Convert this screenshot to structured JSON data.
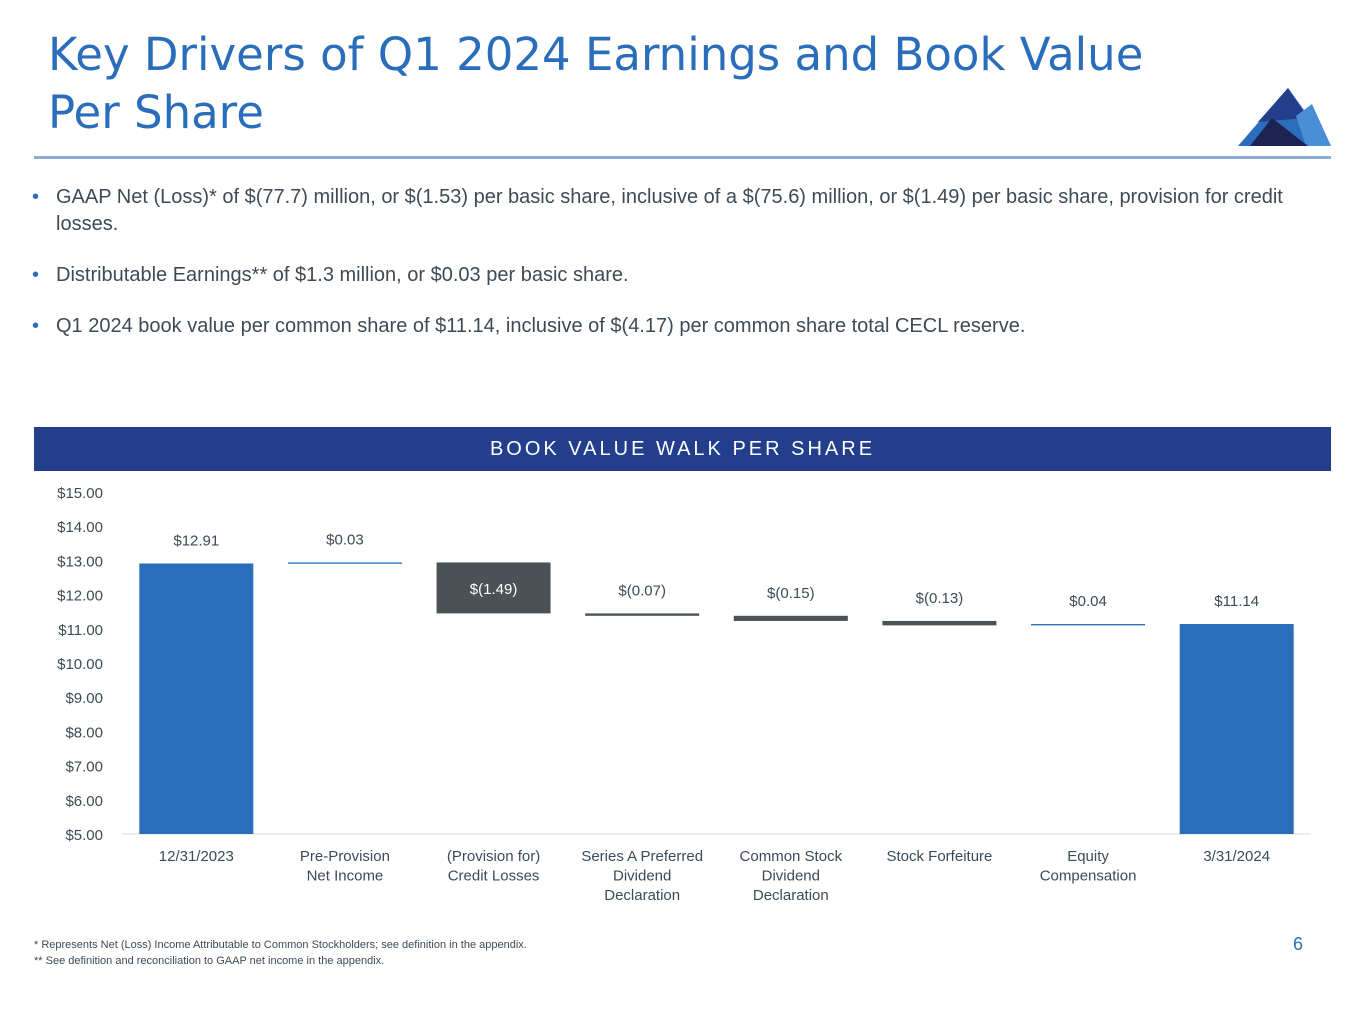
{
  "slide": {
    "title_line1": "Key Drivers of Q1 2024 Earnings and Book Value",
    "title_line2": "Per Share",
    "page_number": "6",
    "colors": {
      "accent": "#2a6ebb",
      "banner": "#233f8c",
      "bar_blue": "#2a6ebb",
      "bar_gray": "#4a5256"
    }
  },
  "bullets": [
    "GAAP Net (Loss)* of $(77.7) million, or $(1.53) per basic share, inclusive of a $(75.6) million, or $(1.49) per basic share, provision for credit losses.",
    "Distributable Earnings** of $1.3 million, or $0.03 per basic share.",
    "Q1 2024 book value per common share of $11.14, inclusive of $(4.17) per common share total CECL reserve."
  ],
  "banner": {
    "label": "BOOK VALUE WALK PER SHARE"
  },
  "footnotes": {
    "line1": "* Represents Net (Loss) Income Attributable to Common Stockholders; see definition in the appendix.",
    "line2": "** See definition and reconciliation to GAAP net income in the appendix."
  },
  "chart_data": {
    "type": "waterfall",
    "title": "BOOK VALUE WALK PER SHARE",
    "ylim": [
      5,
      15
    ],
    "ytick_step": 1,
    "ytick_labels": [
      "$5.00",
      "$6.00",
      "$7.00",
      "$8.00",
      "$9.00",
      "$10.00",
      "$11.00",
      "$12.00",
      "$13.00",
      "$14.00",
      "$15.00"
    ],
    "categories": [
      [
        "12/31/2023"
      ],
      [
        "Pre-Provision",
        "Net Income"
      ],
      [
        "(Provision for)",
        "Credit Losses"
      ],
      [
        "Series A Preferred",
        "Dividend",
        "Declaration"
      ],
      [
        "Common Stock",
        "Dividend",
        "Declaration"
      ],
      [
        "Stock Forfeiture"
      ],
      [
        "Equity",
        "Compensation"
      ],
      [
        "3/31/2024"
      ]
    ],
    "steps": [
      {
        "kind": "total",
        "value": 12.91,
        "label": "$12.91"
      },
      {
        "kind": "delta",
        "value": 0.03,
        "label": "$0.03"
      },
      {
        "kind": "delta",
        "value": -1.49,
        "label": "$(1.49)"
      },
      {
        "kind": "delta",
        "value": -0.07,
        "label": "$(0.07)"
      },
      {
        "kind": "delta",
        "value": -0.15,
        "label": "$(0.15)"
      },
      {
        "kind": "delta",
        "value": -0.13,
        "label": "$(0.13)"
      },
      {
        "kind": "delta",
        "value": 0.04,
        "label": "$0.04"
      },
      {
        "kind": "total",
        "value": 11.14,
        "label": "$11.14"
      }
    ]
  }
}
